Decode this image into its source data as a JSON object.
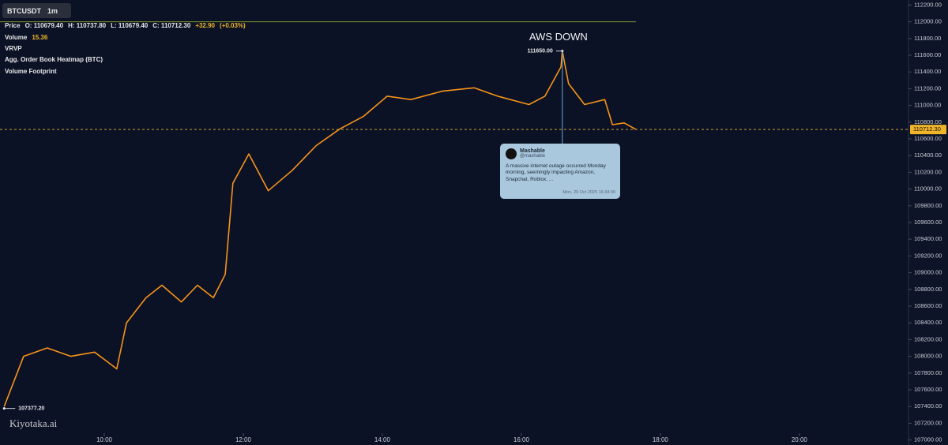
{
  "header": {
    "symbol": "BTCUSDT",
    "interval": "1m",
    "price_label": "Price",
    "open": "O: 110679.40",
    "high": "H: 110737.80",
    "low": "L: 110679.40",
    "close": "C: 110712.30",
    "change": "+32.90",
    "change_pct": "(+0.03%)",
    "volume_label": "Volume",
    "volume_value": "15.36",
    "indicators": [
      "VRVP",
      "Agg. Order Book Heatmap (BTC)",
      "Volume Footprint"
    ]
  },
  "watermark": "Kiyotaka.ai",
  "tweet": {
    "name": "Mashable",
    "handle": "@mashable",
    "body": "A massive internet outage occurred Monday morning, seemingly impacting Amazon, Snapchat, Roblox, ...",
    "date": "Mon, 20 Oct 2025 16:34:00"
  },
  "chart_data": {
    "type": "line",
    "series": [
      {
        "name": "BTCUSDT",
        "color": "#f7931a",
        "x": [
          8.56,
          8.84,
          9.18,
          9.52,
          9.86,
          10.18,
          10.32,
          10.6,
          10.83,
          11.11,
          11.34,
          11.57,
          11.74,
          11.85,
          12.08,
          12.36,
          12.7,
          13.05,
          13.39,
          13.73,
          14.07,
          14.41,
          14.86,
          15.32,
          15.66,
          16.11,
          16.34,
          16.57,
          16.59,
          16.68,
          16.91,
          17.2,
          17.31,
          17.48,
          17.65
        ],
        "values": [
          107400,
          108000,
          108100,
          108000,
          108050,
          107850,
          108400,
          108700,
          108850,
          108650,
          108850,
          108700,
          108980,
          110070,
          110420,
          109980,
          110220,
          110520,
          110720,
          110870,
          111110,
          111070,
          111170,
          111210,
          111110,
          111010,
          111110,
          111460,
          111650,
          111260,
          111010,
          111070,
          110770,
          110790,
          110712.3
        ]
      }
    ],
    "xlim": [
      8.5,
      21.57
    ],
    "xticks": [
      {
        "value": 10,
        "label": "10:00"
      },
      {
        "value": 12,
        "label": "12:00"
      },
      {
        "value": 14,
        "label": "14:00"
      },
      {
        "value": 16,
        "label": "16:00"
      },
      {
        "value": 18,
        "label": "18:00"
      },
      {
        "value": 20,
        "label": "20:00"
      }
    ],
    "ylim": [
      106940,
      112260
    ],
    "yticks": [
      {
        "value": 107000,
        "label": "107000.00"
      },
      {
        "value": 107200,
        "label": "107200.00"
      },
      {
        "value": 107400,
        "label": "107400.00"
      },
      {
        "value": 107600,
        "label": "107600.00"
      },
      {
        "value": 107800,
        "label": "107800.00"
      },
      {
        "value": 108000,
        "label": "108000.00"
      },
      {
        "value": 108200,
        "label": "108200.00"
      },
      {
        "value": 108400,
        "label": "108400.00"
      },
      {
        "value": 108600,
        "label": "108600.00"
      },
      {
        "value": 108800,
        "label": "108800.00"
      },
      {
        "value": 109000,
        "label": "109000.00"
      },
      {
        "value": 109200,
        "label": "109200.00"
      },
      {
        "value": 109400,
        "label": "109400.00"
      },
      {
        "value": 109600,
        "label": "109600.00"
      },
      {
        "value": 109800,
        "label": "109800.00"
      },
      {
        "value": 110000,
        "label": "110000.00"
      },
      {
        "value": 110200,
        "label": "110200.00"
      },
      {
        "value": 110400,
        "label": "110400.00"
      },
      {
        "value": 110600,
        "label": "110600.00"
      },
      {
        "value": 110800,
        "label": "110800.00"
      },
      {
        "value": 111000,
        "label": "111000.00"
      },
      {
        "value": 111200,
        "label": "111200.00"
      },
      {
        "value": 111400,
        "label": "111400.00"
      },
      {
        "value": 111600,
        "label": "111600.00"
      },
      {
        "value": 111800,
        "label": "111800.00"
      },
      {
        "value": 112000,
        "label": "112000.00"
      },
      {
        "value": 112200,
        "label": "112200.00"
      }
    ],
    "annotations": [
      {
        "text": "AWS DOWN",
        "x": 16.59,
        "value": 111650,
        "label": "111650.00"
      },
      {
        "x": 8.56,
        "value": 107377.2,
        "label": "107377.20"
      }
    ],
    "last_price": {
      "value": 110712.3,
      "label": "110712.30",
      "color": "#f0b429"
    },
    "levels": [
      {
        "value": 112000,
        "color": "#7f9a2c"
      }
    ]
  }
}
